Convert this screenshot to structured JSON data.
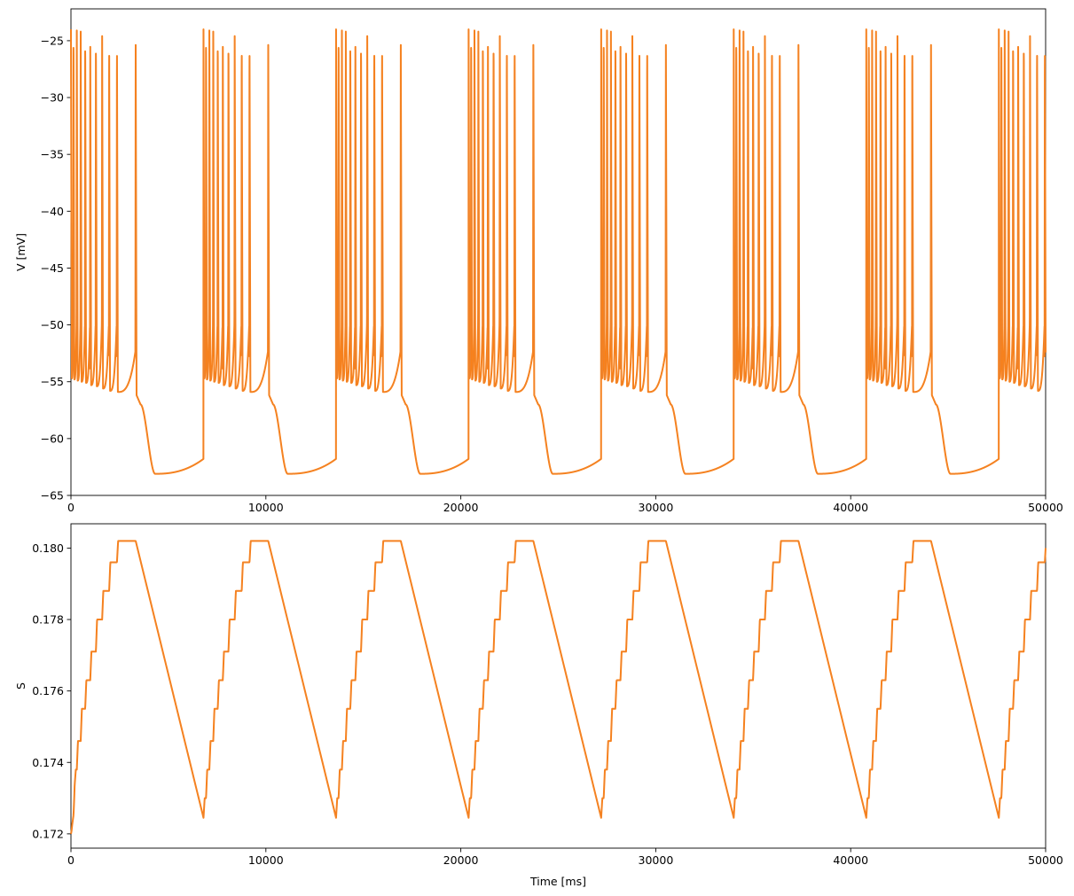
{
  "colors": {
    "series_primary": "#ff7f0e",
    "series_overlay": "#e5853a",
    "axes": "#000000",
    "background": "#ffffff"
  },
  "chart_data": [
    {
      "type": "line",
      "title": "",
      "xlabel": "",
      "ylabel": "V [mV]",
      "xlim": [
        0,
        50000
      ],
      "ylim": [
        -65,
        -22.2
      ],
      "xticks": [
        0,
        10000,
        20000,
        30000,
        40000,
        50000
      ],
      "xtick_labels": [
        "0",
        "10000",
        "20000",
        "30000",
        "40000",
        "50000"
      ],
      "yticks": [
        -65,
        -60,
        -55,
        -50,
        -45,
        -40,
        -35,
        -30,
        -25
      ],
      "ytick_labels": [
        "−65",
        "−60",
        "−55",
        "−50",
        "−45",
        "−40",
        "−35",
        "−30",
        "−25"
      ],
      "grid": false,
      "legend": "none",
      "waveform": {
        "kind": "bursting",
        "cycle_period_ms": 6800,
        "spikes_per_burst": 11,
        "spike_times_in_cycle_ms": [
          0,
          130,
          300,
          500,
          730,
          990,
          1280,
          1600,
          1960,
          2360,
          3320
        ],
        "spike_peak_mv": [
          -24.0,
          -24.0,
          -24.1,
          -24.2,
          -24.3,
          -24.4,
          -24.5,
          -24.6,
          -24.6,
          -24.6,
          -24.8
        ],
        "interspike_trough_mv": [
          -54.7,
          -54.8,
          -54.9,
          -55.0,
          -55.1,
          -55.3,
          -55.4,
          -55.6,
          -55.8,
          -55.9
        ],
        "plateau_after_burst_mv": -56.0,
        "min_mv": -63.1,
        "min_time_after_last_spike_ms": 1000
      },
      "series": [
        {
          "name": "",
          "color": "#ff7f0e"
        },
        {
          "name": "",
          "color": "#e5853a"
        }
      ]
    },
    {
      "type": "line",
      "title": "",
      "xlabel": "Time [ms]",
      "ylabel": "S",
      "xlim": [
        0,
        50000
      ],
      "ylim": [
        0.1716,
        0.18068
      ],
      "xticks": [
        0,
        10000,
        20000,
        30000,
        40000,
        50000
      ],
      "xtick_labels": [
        "0",
        "10000",
        "20000",
        "30000",
        "40000",
        "50000"
      ],
      "yticks": [
        0.172,
        0.174,
        0.176,
        0.178,
        0.18
      ],
      "ytick_labels": [
        "0.172",
        "0.174",
        "0.176",
        "0.178",
        "0.180"
      ],
      "grid": false,
      "legend": "none",
      "waveform": {
        "kind": "staircase-sawtooth",
        "cycle_period_ms": 6800,
        "min": 0.17245,
        "max": 0.1802,
        "initial_value": 0.172,
        "step_values_after_spike": [
          0.173,
          0.1738,
          0.1746,
          0.1755,
          0.1763,
          0.1771,
          0.178,
          0.1788,
          0.1796,
          0.1802
        ]
      },
      "series": [
        {
          "name": "",
          "color": "#ff7f0e"
        },
        {
          "name": "",
          "color": "#e5853a"
        }
      ]
    }
  ]
}
